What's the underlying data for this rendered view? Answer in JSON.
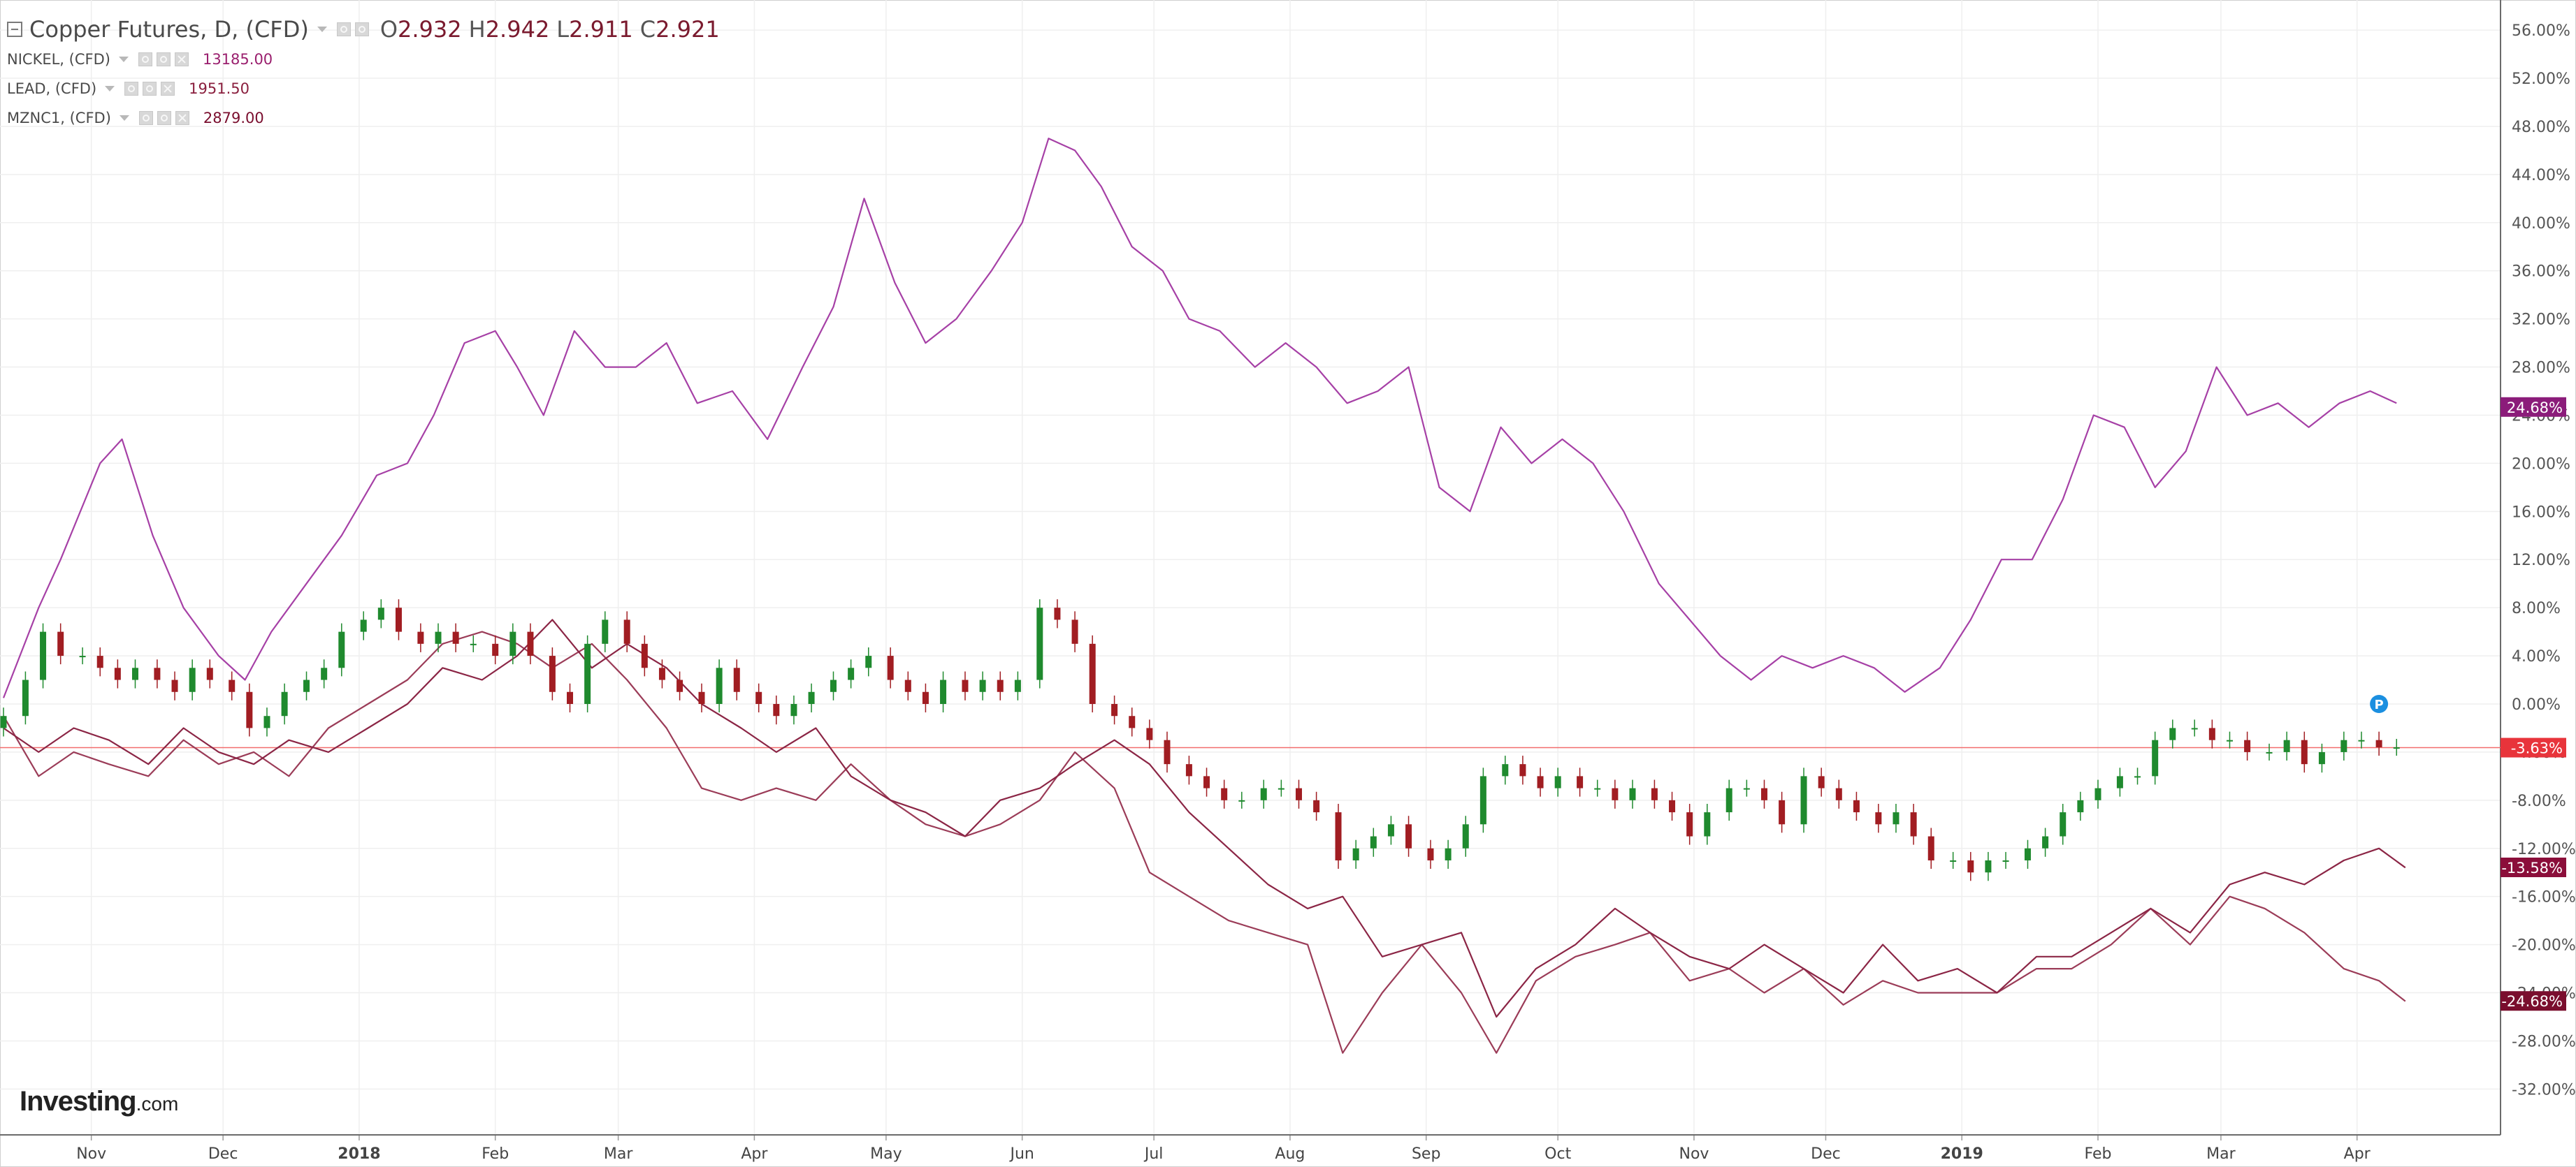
{
  "legend": {
    "main": {
      "name": "Copper Futures, D, (CFD)",
      "o_label": "O",
      "o": "2.932",
      "h_label": "H",
      "h": "2.942",
      "l_label": "L",
      "l": "2.911",
      "c_label": "C",
      "c": "2.921"
    },
    "overlays": [
      {
        "name": "NICKEL, (CFD)",
        "value": "13185.00",
        "color": "#a640a6"
      },
      {
        "name": "LEAD, (CFD)",
        "value": "1951.50",
        "color": "#8a1f3e"
      },
      {
        "name": "MZNC1, (CFD)",
        "value": "2879.00",
        "color": "#7a0e2e"
      }
    ]
  },
  "logo": {
    "main": "Investing",
    "domain": ".com"
  },
  "colors": {
    "up": "#1f8a2e",
    "down": "#a11d22",
    "nickel": "#a640a6",
    "lead": "#9b3c58",
    "zinc": "#8b2545",
    "ref_line": "#f26d6d",
    "grid": "#efefef",
    "axis_text": "#555555",
    "tag_nickel": "#8b1c7a",
    "tag_copper": "#e8343b",
    "tag_lead": "#8b0e3a",
    "tag_zinc": "#7a0e2e",
    "marker": "#1b8fe0"
  },
  "chart_data": {
    "type": "line",
    "x_labels": [
      "Nov",
      "Dec",
      "2018",
      "Feb",
      "Mar",
      "Apr",
      "May",
      "Jun",
      "Jul",
      "Aug",
      "Sep",
      "Oct",
      "Nov",
      "Dec",
      "2019",
      "Feb",
      "Mar",
      "Apr"
    ],
    "x_label_bold": [
      false,
      false,
      true,
      false,
      false,
      false,
      false,
      false,
      false,
      false,
      false,
      false,
      false,
      false,
      true,
      false,
      false,
      false
    ],
    "y_ticks": [
      "56.00%",
      "52.00%",
      "48.00%",
      "44.00%",
      "40.00%",
      "36.00%",
      "32.00%",
      "28.00%",
      "24.00%",
      "20.00%",
      "16.00%",
      "12.00%",
      "8.00%",
      "4.00%",
      "0.00%",
      "-4.00%",
      "-8.00%",
      "-12.00%",
      "-16.00%",
      "-20.00%",
      "-24.00%",
      "-28.00%",
      "-32.00%"
    ],
    "ylim": [
      -34,
      58
    ],
    "ylabel": "",
    "series": [
      {
        "name": "NICKEL, (CFD)",
        "style": "line",
        "x": [
          "2017-10-12",
          "2017-10-20",
          "2017-10-25",
          "2017-11-03",
          "2017-11-08",
          "2017-11-15",
          "2017-11-22",
          "2017-11-30",
          "2017-12-06",
          "2017-12-12",
          "2017-12-20",
          "2017-12-28",
          "2018-01-05",
          "2018-01-12",
          "2018-01-18",
          "2018-01-25",
          "2018-02-01",
          "2018-02-06",
          "2018-02-12",
          "2018-02-19",
          "2018-02-26",
          "2018-03-05",
          "2018-03-12",
          "2018-03-19",
          "2018-03-27",
          "2018-04-04",
          "2018-04-12",
          "2018-04-19",
          "2018-04-26",
          "2018-05-03",
          "2018-05-10",
          "2018-05-17",
          "2018-05-25",
          "2018-06-01",
          "2018-06-07",
          "2018-06-13",
          "2018-06-19",
          "2018-06-26",
          "2018-07-03",
          "2018-07-09",
          "2018-07-16",
          "2018-07-24",
          "2018-07-31",
          "2018-08-07",
          "2018-08-14",
          "2018-08-21",
          "2018-08-28",
          "2018-09-04",
          "2018-09-11",
          "2018-09-18",
          "2018-09-25",
          "2018-10-02",
          "2018-10-09",
          "2018-10-16",
          "2018-10-24",
          "2018-10-31",
          "2018-11-07",
          "2018-11-14",
          "2018-11-21",
          "2018-11-28",
          "2018-12-05",
          "2018-12-12",
          "2018-12-19",
          "2018-12-27",
          "2019-01-03",
          "2019-01-10",
          "2019-01-17",
          "2019-01-24",
          "2019-01-31",
          "2019-02-07",
          "2019-02-14",
          "2019-02-21",
          "2019-02-28",
          "2019-03-07",
          "2019-03-14",
          "2019-03-21",
          "2019-03-28",
          "2019-04-04",
          "2019-04-10"
        ],
        "values": [
          0.5,
          8,
          12,
          20,
          22,
          14,
          8,
          4,
          2,
          6,
          10,
          14,
          19,
          20,
          24,
          30,
          31,
          28,
          24,
          31,
          28,
          28,
          30,
          25,
          26,
          22,
          28,
          33,
          42,
          35,
          30,
          32,
          36,
          40,
          47,
          46,
          43,
          38,
          36,
          32,
          31,
          28,
          30,
          28,
          25,
          26,
          28,
          18,
          16,
          23,
          20,
          22,
          20,
          16,
          10,
          7,
          4,
          2,
          4,
          3,
          4,
          3,
          1,
          3,
          7,
          12,
          12,
          17,
          24,
          23,
          18,
          21,
          28,
          24,
          25,
          23,
          25,
          26,
          25
        ]
      },
      {
        "name": "LEAD, (CFD)",
        "style": "line",
        "x": [
          "2017-10-12",
          "2017-10-20",
          "2017-10-28",
          "2017-11-05",
          "2017-11-14",
          "2017-11-22",
          "2017-11-30",
          "2017-12-08",
          "2017-12-16",
          "2017-12-25",
          "2018-01-03",
          "2018-01-12",
          "2018-01-20",
          "2018-01-29",
          "2018-02-06",
          "2018-02-14",
          "2018-02-23",
          "2018-03-03",
          "2018-03-12",
          "2018-03-20",
          "2018-03-29",
          "2018-04-06",
          "2018-04-15",
          "2018-04-23",
          "2018-05-02",
          "2018-05-10",
          "2018-05-19",
          "2018-05-27",
          "2018-06-05",
          "2018-06-13",
          "2018-06-22",
          "2018-06-30",
          "2018-07-09",
          "2018-07-18",
          "2018-07-27",
          "2018-08-05",
          "2018-08-13",
          "2018-08-22",
          "2018-08-31",
          "2018-09-09",
          "2018-09-17",
          "2018-09-26",
          "2018-10-05",
          "2018-10-14",
          "2018-10-22",
          "2018-10-31",
          "2018-11-09",
          "2018-11-17",
          "2018-11-26",
          "2018-12-05",
          "2018-12-14",
          "2018-12-22",
          "2018-12-31",
          "2019-01-09",
          "2019-01-18",
          "2019-01-26",
          "2019-02-04",
          "2019-02-13",
          "2019-02-22",
          "2019-03-03",
          "2019-03-11",
          "2019-03-20",
          "2019-03-29",
          "2019-04-06",
          "2019-04-12"
        ],
        "values": [
          -1,
          -6,
          -4,
          -5,
          -6,
          -3,
          -5,
          -4,
          -6,
          -2,
          0,
          2,
          5,
          6,
          5,
          3,
          5,
          2,
          -2,
          -7,
          -8,
          -7,
          -8,
          -5,
          -8,
          -10,
          -11,
          -10,
          -8,
          -4,
          -7,
          -14,
          -16,
          -18,
          -19,
          -20,
          -29,
          -24,
          -20,
          -24,
          -29,
          -23,
          -21,
          -20,
          -19,
          -23,
          -22,
          -24,
          -22,
          -25,
          -23,
          -24,
          -24,
          -24,
          -22,
          -22,
          -20,
          -17,
          -20,
          -16,
          -17,
          -19,
          -22,
          -23,
          -24.7
        ]
      },
      {
        "name": "MZNC1, (CFD)",
        "style": "line",
        "x": [
          "2017-10-12",
          "2017-10-20",
          "2017-10-28",
          "2017-11-05",
          "2017-11-14",
          "2017-11-22",
          "2017-11-30",
          "2017-12-08",
          "2017-12-16",
          "2017-12-25",
          "2018-01-03",
          "2018-01-12",
          "2018-01-20",
          "2018-01-29",
          "2018-02-06",
          "2018-02-14",
          "2018-02-23",
          "2018-03-03",
          "2018-03-12",
          "2018-03-20",
          "2018-03-29",
          "2018-04-06",
          "2018-04-15",
          "2018-04-23",
          "2018-05-02",
          "2018-05-10",
          "2018-05-19",
          "2018-05-27",
          "2018-06-05",
          "2018-06-13",
          "2018-06-22",
          "2018-06-30",
          "2018-07-09",
          "2018-07-18",
          "2018-07-27",
          "2018-08-05",
          "2018-08-13",
          "2018-08-22",
          "2018-08-31",
          "2018-09-09",
          "2018-09-17",
          "2018-09-26",
          "2018-10-05",
          "2018-10-14",
          "2018-10-22",
          "2018-10-31",
          "2018-11-09",
          "2018-11-17",
          "2018-11-26",
          "2018-12-05",
          "2018-12-14",
          "2018-12-22",
          "2018-12-31",
          "2019-01-09",
          "2019-01-18",
          "2019-01-26",
          "2019-02-04",
          "2019-02-13",
          "2019-02-22",
          "2019-03-03",
          "2019-03-11",
          "2019-03-20",
          "2019-03-29",
          "2019-04-06",
          "2019-04-12"
        ],
        "values": [
          -2,
          -4,
          -2,
          -3,
          -5,
          -2,
          -4,
          -5,
          -3,
          -4,
          -2,
          0,
          3,
          2,
          4,
          7,
          3,
          5,
          3,
          0,
          -2,
          -4,
          -2,
          -6,
          -8,
          -9,
          -11,
          -8,
          -7,
          -5,
          -3,
          -5,
          -9,
          -12,
          -15,
          -17,
          -16,
          -21,
          -20,
          -19,
          -26,
          -22,
          -20,
          -17,
          -19,
          -21,
          -22,
          -20,
          -22,
          -24,
          -20,
          -23,
          -22,
          -24,
          -21,
          -21,
          -19,
          -17,
          -19,
          -15,
          -14,
          -15,
          -13,
          -12,
          -13.6
        ]
      }
    ],
    "candles": {
      "name": "Copper Futures, D, (CFD)",
      "x": [
        "2017-10-12",
        "2017-10-17",
        "2017-10-21",
        "2017-10-25",
        "2017-10-30",
        "2017-11-03",
        "2017-11-07",
        "2017-11-11",
        "2017-11-16",
        "2017-11-20",
        "2017-11-24",
        "2017-11-28",
        "2017-12-03",
        "2017-12-07",
        "2017-12-11",
        "2017-12-15",
        "2017-12-20",
        "2017-12-24",
        "2017-12-28",
        "2018-01-02",
        "2018-01-06",
        "2018-01-10",
        "2018-01-15",
        "2018-01-19",
        "2018-01-23",
        "2018-01-27",
        "2018-02-01",
        "2018-02-05",
        "2018-02-09",
        "2018-02-14",
        "2018-02-18",
        "2018-02-22",
        "2018-02-26",
        "2018-03-03",
        "2018-03-07",
        "2018-03-11",
        "2018-03-15",
        "2018-03-20",
        "2018-03-24",
        "2018-03-28",
        "2018-04-02",
        "2018-04-06",
        "2018-04-10",
        "2018-04-14",
        "2018-04-19",
        "2018-04-23",
        "2018-04-27",
        "2018-05-02",
        "2018-05-06",
        "2018-05-10",
        "2018-05-14",
        "2018-05-19",
        "2018-05-23",
        "2018-05-27",
        "2018-05-31",
        "2018-06-05",
        "2018-06-09",
        "2018-06-13",
        "2018-06-17",
        "2018-06-22",
        "2018-06-26",
        "2018-06-30",
        "2018-07-04",
        "2018-07-09",
        "2018-07-13",
        "2018-07-17",
        "2018-07-21",
        "2018-07-26",
        "2018-07-30",
        "2018-08-03",
        "2018-08-07",
        "2018-08-12",
        "2018-08-16",
        "2018-08-20",
        "2018-08-24",
        "2018-08-28",
        "2018-09-02",
        "2018-09-06",
        "2018-09-10",
        "2018-09-14",
        "2018-09-19",
        "2018-09-23",
        "2018-09-27",
        "2018-10-01",
        "2018-10-06",
        "2018-10-10",
        "2018-10-14",
        "2018-10-18",
        "2018-10-23",
        "2018-10-27",
        "2018-10-31",
        "2018-11-04",
        "2018-11-09",
        "2018-11-13",
        "2018-11-17",
        "2018-11-21",
        "2018-11-26",
        "2018-11-30",
        "2018-12-04",
        "2018-12-08",
        "2018-12-13",
        "2018-12-17",
        "2018-12-21",
        "2018-12-25",
        "2018-12-30",
        "2019-01-03",
        "2019-01-07",
        "2019-01-11",
        "2019-01-16",
        "2019-01-20",
        "2019-01-24",
        "2019-01-28",
        "2019-02-01",
        "2019-02-06",
        "2019-02-10",
        "2019-02-14",
        "2019-02-18",
        "2019-02-23",
        "2019-02-27",
        "2019-03-03",
        "2019-03-07",
        "2019-03-12",
        "2019-03-16",
        "2019-03-20",
        "2019-03-24",
        "2019-03-29",
        "2019-04-02",
        "2019-04-06",
        "2019-04-10"
      ],
      "close": [
        -1,
        2,
        6,
        4,
        4,
        3,
        2,
        3,
        2,
        1,
        3,
        2,
        1,
        -2,
        -1,
        1,
        2,
        3,
        6,
        7,
        8,
        6,
        5,
        6,
        5,
        5,
        4,
        6,
        4,
        1,
        0,
        5,
        7,
        5,
        3,
        2,
        1,
        0,
        3,
        1,
        0,
        -1,
        0,
        1,
        2,
        3,
        4,
        2,
        1,
        0,
        2,
        1,
        2,
        1,
        2,
        8,
        7,
        5,
        0,
        -1,
        -2,
        -3,
        -5,
        -6,
        -7,
        -8,
        -8,
        -7,
        -7,
        -8,
        -9,
        -13,
        -12,
        -11,
        -10,
        -12,
        -13,
        -12,
        -10,
        -6,
        -5,
        -6,
        -7,
        -6,
        -7,
        -7,
        -8,
        -7,
        -8,
        -9,
        -11,
        -9,
        -7,
        -7,
        -8,
        -10,
        -6,
        -7,
        -8,
        -9,
        -10,
        -9,
        -11,
        -13,
        -13,
        -14,
        -13,
        -13,
        -12,
        -11,
        -9,
        -8,
        -7,
        -6,
        -6,
        -3,
        -2,
        -2,
        -3,
        -3,
        -4,
        -4,
        -3,
        -5,
        -4,
        -3,
        -3,
        -3.6,
        -3.6
      ],
      "up_color": "#1f8a2e",
      "down_color": "#a11d22"
    },
    "ref_line": -3.63,
    "tags": [
      {
        "label": "24.68%",
        "value": 24.68,
        "color": "#8b1c7a"
      },
      {
        "label": "-3.63%",
        "value": -3.63,
        "color": "#e8343b"
      },
      {
        "label": "-13.58%",
        "value": -13.58,
        "color": "#8b0e3a"
      },
      {
        "label": "-24.68%",
        "value": -24.68,
        "color": "#7a0e2e"
      }
    ],
    "marker": {
      "label": "P",
      "date": "2019-04-06",
      "value": 0
    },
    "grid": true
  }
}
